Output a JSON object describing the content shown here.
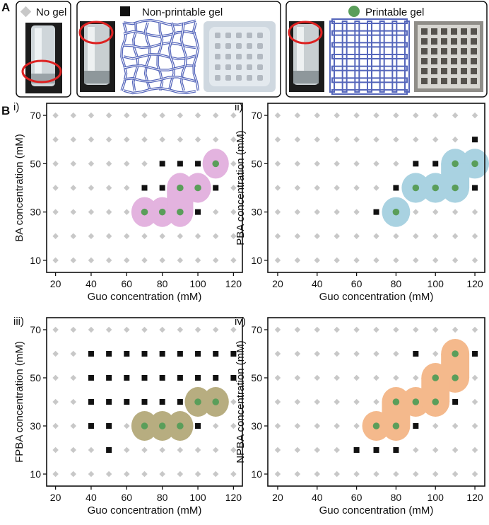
{
  "panels": {
    "A": "A",
    "B": "B"
  },
  "legend": {
    "no_gel": "No gel",
    "non_printable": "Non-printable gel",
    "printable": "Printable gel"
  },
  "colors": {
    "no_gel": "#c8c8c8",
    "non_printable": "#111111",
    "printable": "#5a9e5a",
    "lattice": "#5566bb",
    "vial_ring": "#dd2222"
  },
  "chart_data": [
    {
      "type": "scatter",
      "label": "i)",
      "xlabel": "Guo concentration (mM)",
      "ylabel": "BA concentration (mM)",
      "xlim": [
        15,
        125
      ],
      "ylim": [
        5,
        75
      ],
      "xticks": [
        20,
        40,
        60,
        80,
        100,
        120
      ],
      "yticks": [
        10,
        30,
        50,
        70
      ],
      "region_color": "#e3b3df",
      "non_printable": [
        [
          80,
          50
        ],
        [
          90,
          50
        ],
        [
          100,
          50
        ],
        [
          70,
          40
        ],
        [
          80,
          40
        ],
        [
          110,
          40
        ],
        [
          100,
          30
        ]
      ],
      "printable": [
        [
          110,
          50
        ],
        [
          90,
          40
        ],
        [
          100,
          40
        ],
        [
          70,
          30
        ],
        [
          80,
          30
        ],
        [
          90,
          30
        ]
      ]
    },
    {
      "type": "scatter",
      "label": "ii)",
      "xlabel": "Guo concentration (mM)",
      "ylabel": "PBA concentration (mM)",
      "xlim": [
        15,
        125
      ],
      "ylim": [
        5,
        75
      ],
      "xticks": [
        20,
        40,
        60,
        80,
        100,
        120
      ],
      "yticks": [
        10,
        30,
        50,
        70
      ],
      "region_color": "#a9d2e1",
      "non_printable": [
        [
          120,
          60
        ],
        [
          90,
          50
        ],
        [
          100,
          50
        ],
        [
          80,
          40
        ],
        [
          120,
          40
        ],
        [
          70,
          30
        ]
      ],
      "printable": [
        [
          110,
          50
        ],
        [
          120,
          50
        ],
        [
          90,
          40
        ],
        [
          100,
          40
        ],
        [
          110,
          40
        ],
        [
          80,
          30
        ]
      ]
    },
    {
      "type": "scatter",
      "label": "iii)",
      "xlabel": "Guo concentration (mM)",
      "ylabel": "FPBA concentration (mM)",
      "xlim": [
        15,
        125
      ],
      "ylim": [
        5,
        75
      ],
      "xticks": [
        20,
        40,
        60,
        80,
        100,
        120
      ],
      "yticks": [
        10,
        30,
        50,
        70
      ],
      "region_color": "#b7ad80",
      "non_printable": [
        [
          40,
          60
        ],
        [
          50,
          60
        ],
        [
          60,
          60
        ],
        [
          70,
          60
        ],
        [
          80,
          60
        ],
        [
          90,
          60
        ],
        [
          100,
          60
        ],
        [
          110,
          60
        ],
        [
          120,
          60
        ],
        [
          40,
          50
        ],
        [
          50,
          50
        ],
        [
          60,
          50
        ],
        [
          70,
          50
        ],
        [
          80,
          50
        ],
        [
          90,
          50
        ],
        [
          100,
          50
        ],
        [
          110,
          50
        ],
        [
          120,
          50
        ],
        [
          40,
          40
        ],
        [
          50,
          40
        ],
        [
          60,
          40
        ],
        [
          70,
          40
        ],
        [
          80,
          40
        ],
        [
          90,
          40
        ],
        [
          40,
          30
        ],
        [
          50,
          30
        ],
        [
          100,
          30
        ],
        [
          50,
          20
        ]
      ],
      "printable": [
        [
          100,
          40
        ],
        [
          110,
          40
        ],
        [
          70,
          30
        ],
        [
          80,
          30
        ],
        [
          90,
          30
        ]
      ]
    },
    {
      "type": "scatter",
      "label": "iv)",
      "xlabel": "Guo concentration (mM)",
      "ylabel": "NPBA concentration (mM)",
      "xlim": [
        15,
        125
      ],
      "ylim": [
        5,
        75
      ],
      "xticks": [
        20,
        40,
        60,
        80,
        100,
        120
      ],
      "yticks": [
        10,
        30,
        50,
        70
      ],
      "region_color": "#f4b98c",
      "non_printable": [
        [
          90,
          60
        ],
        [
          120,
          60
        ],
        [
          110,
          40
        ],
        [
          90,
          30
        ],
        [
          60,
          20
        ],
        [
          70,
          20
        ],
        [
          80,
          20
        ]
      ],
      "printable": [
        [
          110,
          60
        ],
        [
          100,
          50
        ],
        [
          110,
          50
        ],
        [
          80,
          40
        ],
        [
          90,
          40
        ],
        [
          100,
          40
        ],
        [
          70,
          30
        ],
        [
          80,
          30
        ]
      ]
    }
  ]
}
